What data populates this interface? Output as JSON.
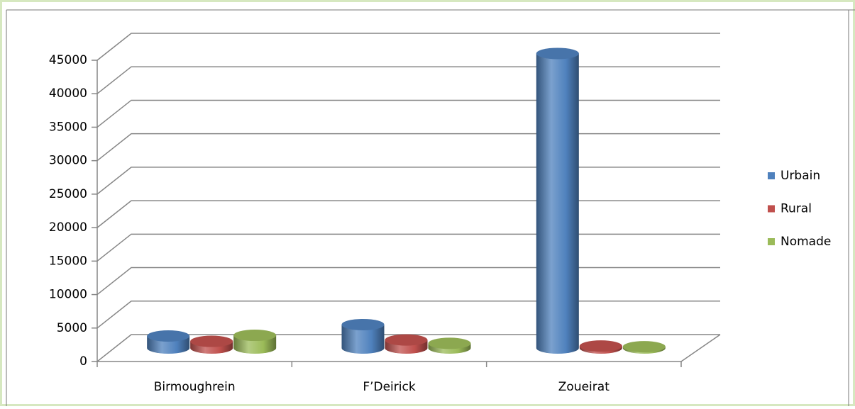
{
  "chart_data": {
    "type": "bar3d",
    "categories": [
      "Birmoughrein",
      "F’Deirick",
      "Zoueirat"
    ],
    "series": [
      {
        "name": "Urbain",
        "color": "#4f81bd",
        "values": [
          1800,
          3500,
          44000
        ]
      },
      {
        "name": "Rural",
        "color": "#c0504d",
        "values": [
          1000,
          1200,
          300
        ]
      },
      {
        "name": "Nomade",
        "color": "#9bbb59",
        "values": [
          1900,
          700,
          200
        ]
      }
    ],
    "ylim": [
      0,
      45000
    ],
    "yticks": [
      0,
      5000,
      10000,
      15000,
      20000,
      25000,
      30000,
      35000,
      40000,
      45000
    ],
    "grid": true,
    "legend": "right"
  }
}
